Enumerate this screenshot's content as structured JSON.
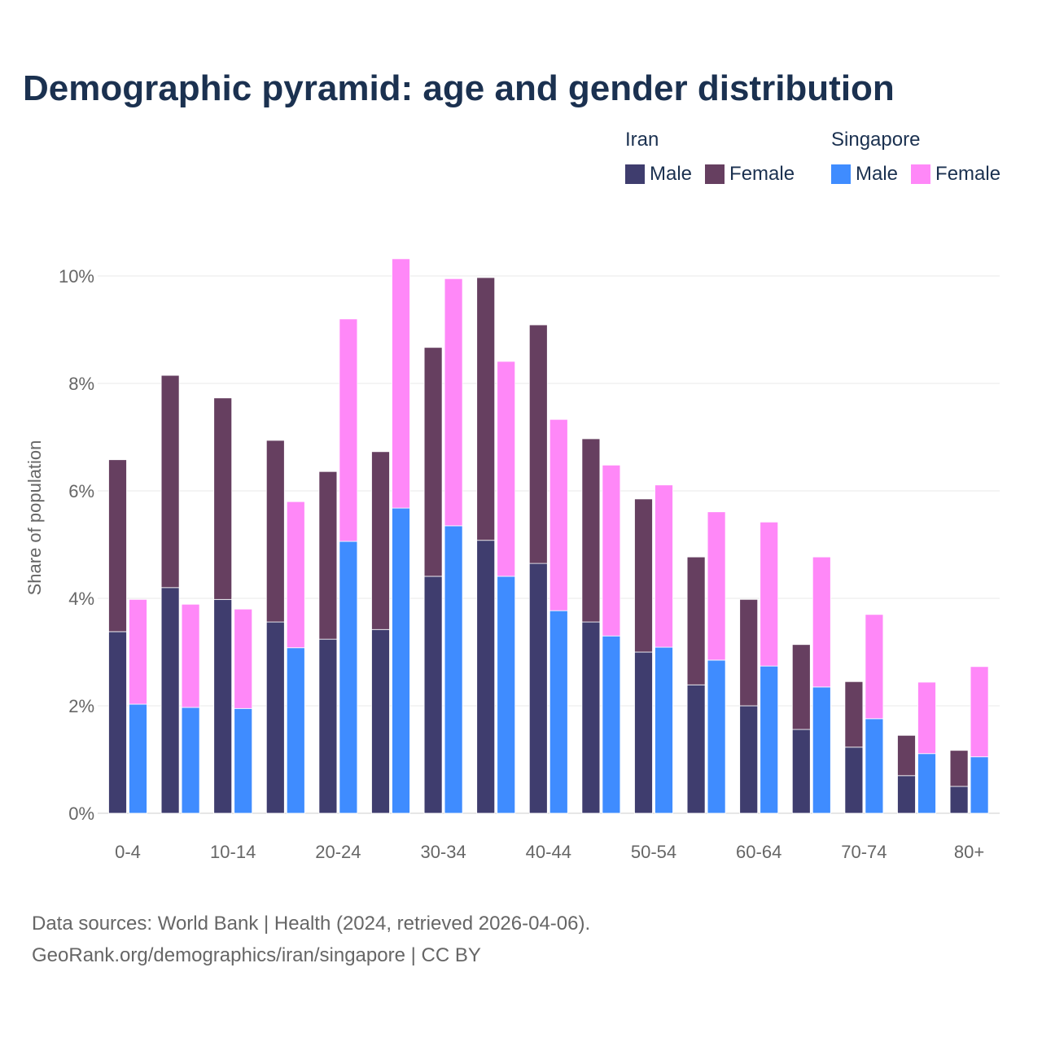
{
  "chart_data": {
    "type": "bar",
    "stacked": true,
    "title": "Demographic pyramid: age and gender distribution",
    "ylabel": "Share of population",
    "xlabel": "",
    "ylim": [
      0,
      10.5
    ],
    "yticks": [
      0,
      2,
      4,
      6,
      8,
      10
    ],
    "ytick_labels": [
      "0%",
      "2%",
      "4%",
      "6%",
      "8%",
      "10%"
    ],
    "grid": true,
    "categories": [
      "0-4",
      "5-9",
      "10-14",
      "15-19",
      "20-24",
      "25-29",
      "30-34",
      "35-39",
      "40-44",
      "45-49",
      "50-54",
      "55-59",
      "60-64",
      "65-69",
      "70-74",
      "75-79",
      "80+"
    ],
    "xtick_labels_shown": [
      "0-4",
      "10-14",
      "20-24",
      "30-34",
      "40-44",
      "50-54",
      "60-64",
      "70-74",
      "80+"
    ],
    "legend_position": "top-right",
    "countries": [
      {
        "name": "Iran",
        "series": [
          {
            "name": "Male",
            "color": "#3f3d6e",
            "values": [
              3.38,
              4.2,
              3.98,
              3.56,
              3.24,
              3.42,
              4.41,
              5.08,
              4.65,
              3.56,
              3.0,
              2.39,
              2.0,
              1.56,
              1.23,
              0.7,
              0.5
            ]
          },
          {
            "name": "Female",
            "color": "#663f60",
            "values": [
              3.2,
              3.95,
              3.75,
              3.38,
              3.12,
              3.31,
              4.26,
              4.89,
              4.44,
              3.41,
              2.85,
              2.38,
              1.98,
              1.58,
              1.22,
              0.75,
              0.67
            ]
          }
        ]
      },
      {
        "name": "Singapore",
        "series": [
          {
            "name": "Male",
            "color": "#3f8cff",
            "values": [
              2.03,
              1.97,
              1.95,
              3.08,
              5.06,
              5.68,
              5.35,
              4.41,
              3.77,
              3.3,
              3.09,
              2.85,
              2.74,
              2.35,
              1.76,
              1.11,
              1.05
            ]
          },
          {
            "name": "Female",
            "color": "#ff88f8",
            "values": [
              1.95,
              1.92,
              1.85,
              2.72,
              4.14,
              4.64,
              4.6,
              4.0,
              3.56,
              3.18,
              3.02,
              2.76,
              2.68,
              2.42,
              1.94,
              1.33,
              1.68
            ]
          }
        ]
      }
    ]
  },
  "footer": {
    "line1": "Data sources: World Bank | Health (2024, retrieved 2026-04-06).",
    "line2": "GeoRank.org/demographics/iran/singapore | CC BY"
  }
}
